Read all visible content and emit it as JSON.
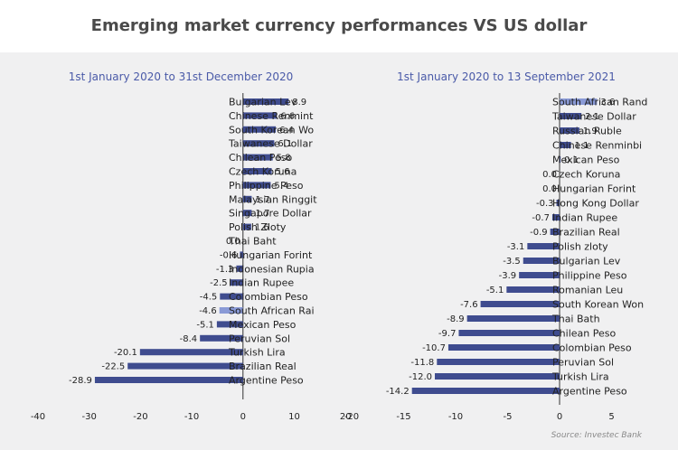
{
  "title": "Emerging market currency performances VS US dollar",
  "source": "Source: Investec Bank",
  "colors": {
    "bar": "#3f4c8f",
    "highlight": "#8a9ad6",
    "axis": "#333333",
    "title": "#4a4a4a",
    "subtitle": "#4a5aa8"
  },
  "chart_data": [
    {
      "type": "bar",
      "orientation": "horizontal",
      "subtitle": "1st January 2020 to 31st December 2020",
      "highlight": "South African Rai",
      "xlim": [
        -40,
        20
      ],
      "xticks": [
        -40,
        -30,
        -20,
        -10,
        0,
        10,
        20
      ],
      "categories": [
        "Bulgarian Lev",
        "Chinese Renmint",
        "South Korean Wo",
        "Taiwanese Dollar",
        "Chilean Peso",
        "Czech Koruna",
        "Philippine Peso",
        "Malaysian Ringgit",
        "Singapore Dollar",
        "Polish Zloty",
        "Thai Baht",
        "Hungarian Forint",
        "Indonesian Rupia",
        "Indian Rupee",
        "Colombian Peso",
        "South African Rai",
        "Mexican Peso",
        "Peruvian Sol",
        "Turkish Lira",
        "Brazilian Real",
        "Argentine Peso"
      ],
      "values": [
        8.9,
        6.6,
        6.4,
        6.1,
        5.8,
        5.6,
        5.4,
        1.7,
        1.7,
        1.6,
        0.0,
        -0.6,
        -1.3,
        -2.5,
        -4.5,
        -4.6,
        -5.1,
        -8.4,
        -20.1,
        -22.5,
        -28.9
      ],
      "value_labels": [
        "8.9",
        "6.6",
        "6.4",
        "6.1",
        "5.8",
        "5.6",
        "5.4",
        "1.7",
        "1.7",
        "1.6",
        "0.0",
        "-0.6",
        "-1.3",
        "-2.5",
        "-4.5",
        "-4.6",
        "-5.1",
        "-8.4",
        "-20.1",
        "-22.5",
        "-28.9"
      ]
    },
    {
      "type": "bar",
      "orientation": "horizontal",
      "subtitle": "1st January 2020 to 13 September 2021",
      "highlight": "South African Rand",
      "xlim": [
        -20,
        5
      ],
      "xticks": [
        -20,
        -15,
        -10,
        -5,
        0,
        5
      ],
      "categories": [
        "South African Rand",
        "Taiwanese Dollar",
        "Russian Ruble",
        "Chinese Renminbi",
        "Mexican Peso",
        "Czech Koruna",
        "Hungarian Forint",
        "Hong Kong Dollar",
        "Indian Rupee",
        "Brazilian Real",
        "Polish zloty",
        "Bulgarian Lev",
        "Philippine Peso",
        "Romanian Leu",
        "South Korean Won",
        "Thai Bath",
        "Chilean Peso",
        "Colombian Peso",
        "Peruvian Sol",
        "Turkish Lira",
        "Argentine Peso"
      ],
      "values": [
        3.6,
        2.1,
        1.9,
        1.1,
        0.1,
        0.0,
        0.0,
        -0.3,
        -0.7,
        -0.9,
        -3.1,
        -3.5,
        -3.9,
        -5.1,
        -7.6,
        -8.9,
        -9.7,
        -10.7,
        -11.8,
        -12.0,
        -14.2
      ],
      "value_labels": [
        "3.6",
        "2.1",
        "1.9",
        "1.1",
        "0.1",
        "0.0",
        "0.0",
        "-0.3",
        "-0.7",
        "-0.9",
        "-3.1",
        "-3.5",
        "-3.9",
        "-5.1",
        "-7.6",
        "-8.9",
        "-9.7",
        "-10.7",
        "-11.8",
        "-12.0",
        "-14.2"
      ]
    }
  ]
}
